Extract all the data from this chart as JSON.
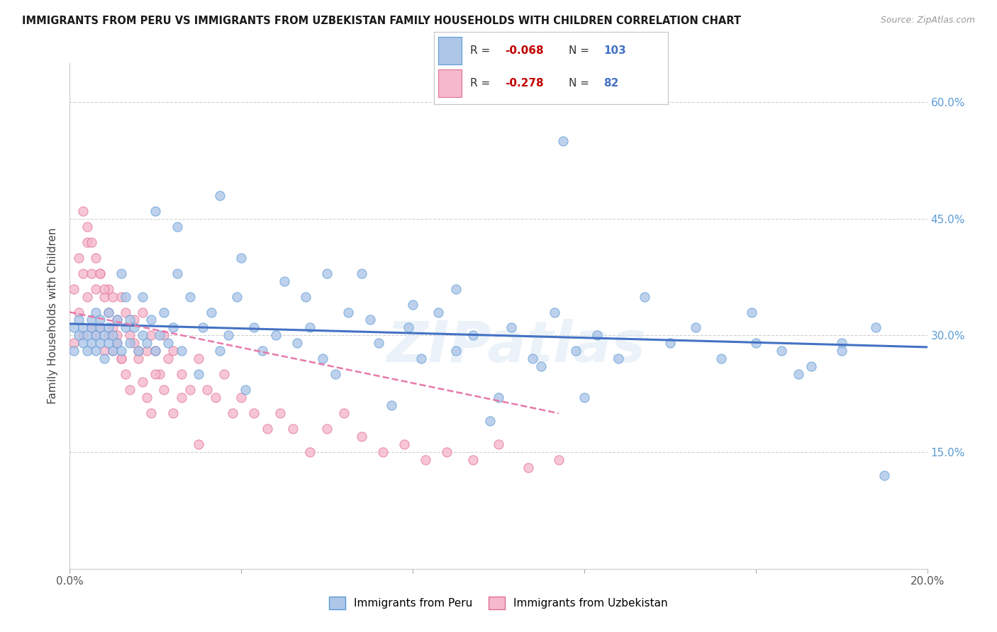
{
  "title": "IMMIGRANTS FROM PERU VS IMMIGRANTS FROM UZBEKISTAN FAMILY HOUSEHOLDS WITH CHILDREN CORRELATION CHART",
  "source": "Source: ZipAtlas.com",
  "ylabel": "Family Households with Children",
  "x_min": 0.0,
  "x_max": 0.2,
  "y_min": 0.0,
  "y_max": 0.65,
  "y_ticks": [
    0.0,
    0.15,
    0.3,
    0.45,
    0.6
  ],
  "x_ticks": [
    0.0,
    0.04,
    0.08,
    0.12,
    0.16,
    0.2
  ],
  "peru_color": "#aec6e8",
  "uzbekistan_color": "#f5b8cc",
  "peru_edge_color": "#5b9bd5",
  "uzbekistan_edge_color": "#e07090",
  "peru_line_color": "#4472c4",
  "uzbekistan_line_color": "#e87aaa",
  "R_peru": -0.068,
  "N_peru": 103,
  "R_uzbekistan": -0.278,
  "N_uzbekistan": 82,
  "legend_R_color": "#c00000",
  "legend_N_color": "#4472c4",
  "watermark": "ZIPatlas",
  "peru_scatter_x": [
    0.001,
    0.001,
    0.002,
    0.002,
    0.003,
    0.003,
    0.004,
    0.004,
    0.005,
    0.005,
    0.005,
    0.006,
    0.006,
    0.006,
    0.007,
    0.007,
    0.007,
    0.008,
    0.008,
    0.009,
    0.009,
    0.009,
    0.01,
    0.01,
    0.011,
    0.011,
    0.012,
    0.012,
    0.013,
    0.013,
    0.014,
    0.014,
    0.015,
    0.016,
    0.017,
    0.017,
    0.018,
    0.019,
    0.02,
    0.021,
    0.022,
    0.023,
    0.024,
    0.025,
    0.026,
    0.028,
    0.03,
    0.031,
    0.033,
    0.035,
    0.037,
    0.039,
    0.041,
    0.043,
    0.045,
    0.048,
    0.05,
    0.053,
    0.056,
    0.059,
    0.062,
    0.065,
    0.068,
    0.072,
    0.075,
    0.079,
    0.082,
    0.086,
    0.09,
    0.094,
    0.098,
    0.103,
    0.108,
    0.113,
    0.118,
    0.123,
    0.128,
    0.134,
    0.14,
    0.146,
    0.152,
    0.159,
    0.166,
    0.173,
    0.18,
    0.188,
    0.02,
    0.025,
    0.035,
    0.04,
    0.055,
    0.06,
    0.07,
    0.08,
    0.09,
    0.1,
    0.11,
    0.12,
    0.16,
    0.17,
    0.18,
    0.19,
    0.115
  ],
  "peru_scatter_y": [
    0.31,
    0.28,
    0.3,
    0.32,
    0.29,
    0.31,
    0.3,
    0.28,
    0.31,
    0.29,
    0.32,
    0.3,
    0.33,
    0.28,
    0.31,
    0.29,
    0.32,
    0.3,
    0.27,
    0.31,
    0.29,
    0.33,
    0.3,
    0.28,
    0.32,
    0.29,
    0.38,
    0.28,
    0.31,
    0.35,
    0.29,
    0.32,
    0.31,
    0.28,
    0.3,
    0.35,
    0.29,
    0.32,
    0.28,
    0.3,
    0.33,
    0.29,
    0.31,
    0.38,
    0.28,
    0.35,
    0.25,
    0.31,
    0.33,
    0.28,
    0.3,
    0.35,
    0.23,
    0.31,
    0.28,
    0.3,
    0.37,
    0.29,
    0.31,
    0.27,
    0.25,
    0.33,
    0.38,
    0.29,
    0.21,
    0.31,
    0.27,
    0.33,
    0.28,
    0.3,
    0.19,
    0.31,
    0.27,
    0.33,
    0.28,
    0.3,
    0.27,
    0.35,
    0.29,
    0.31,
    0.27,
    0.33,
    0.28,
    0.26,
    0.29,
    0.31,
    0.46,
    0.44,
    0.48,
    0.4,
    0.35,
    0.38,
    0.32,
    0.34,
    0.36,
    0.22,
    0.26,
    0.22,
    0.29,
    0.25,
    0.28,
    0.12,
    0.55
  ],
  "uzbekistan_scatter_x": [
    0.001,
    0.001,
    0.002,
    0.002,
    0.003,
    0.003,
    0.004,
    0.004,
    0.005,
    0.005,
    0.006,
    0.006,
    0.007,
    0.007,
    0.008,
    0.008,
    0.009,
    0.009,
    0.01,
    0.01,
    0.011,
    0.011,
    0.012,
    0.012,
    0.013,
    0.014,
    0.015,
    0.016,
    0.017,
    0.018,
    0.019,
    0.02,
    0.021,
    0.022,
    0.023,
    0.024,
    0.026,
    0.028,
    0.03,
    0.032,
    0.034,
    0.036,
    0.038,
    0.04,
    0.043,
    0.046,
    0.049,
    0.052,
    0.056,
    0.06,
    0.064,
    0.068,
    0.073,
    0.078,
    0.083,
    0.088,
    0.094,
    0.1,
    0.107,
    0.114,
    0.003,
    0.004,
    0.005,
    0.006,
    0.007,
    0.008,
    0.009,
    0.01,
    0.011,
    0.012,
    0.013,
    0.014,
    0.015,
    0.016,
    0.017,
    0.018,
    0.019,
    0.02,
    0.022,
    0.024,
    0.026,
    0.03
  ],
  "uzbekistan_scatter_y": [
    0.36,
    0.29,
    0.4,
    0.33,
    0.38,
    0.3,
    0.42,
    0.35,
    0.38,
    0.31,
    0.36,
    0.3,
    0.38,
    0.31,
    0.35,
    0.28,
    0.36,
    0.3,
    0.35,
    0.28,
    0.32,
    0.3,
    0.35,
    0.27,
    0.33,
    0.3,
    0.32,
    0.28,
    0.33,
    0.28,
    0.3,
    0.28,
    0.25,
    0.3,
    0.27,
    0.28,
    0.25,
    0.23,
    0.27,
    0.23,
    0.22,
    0.25,
    0.2,
    0.22,
    0.2,
    0.18,
    0.2,
    0.18,
    0.15,
    0.18,
    0.2,
    0.17,
    0.15,
    0.16,
    0.14,
    0.15,
    0.14,
    0.16,
    0.13,
    0.14,
    0.46,
    0.44,
    0.42,
    0.4,
    0.38,
    0.36,
    0.33,
    0.31,
    0.29,
    0.27,
    0.25,
    0.23,
    0.29,
    0.27,
    0.24,
    0.22,
    0.2,
    0.25,
    0.23,
    0.2,
    0.22,
    0.16
  ],
  "peru_line_x0": 0.0,
  "peru_line_x1": 0.2,
  "peru_line_y0": 0.315,
  "peru_line_y1": 0.285,
  "uzbek_line_x0": 0.0,
  "uzbek_line_x1": 0.114,
  "uzbek_line_y0": 0.33,
  "uzbek_line_y1": 0.2
}
